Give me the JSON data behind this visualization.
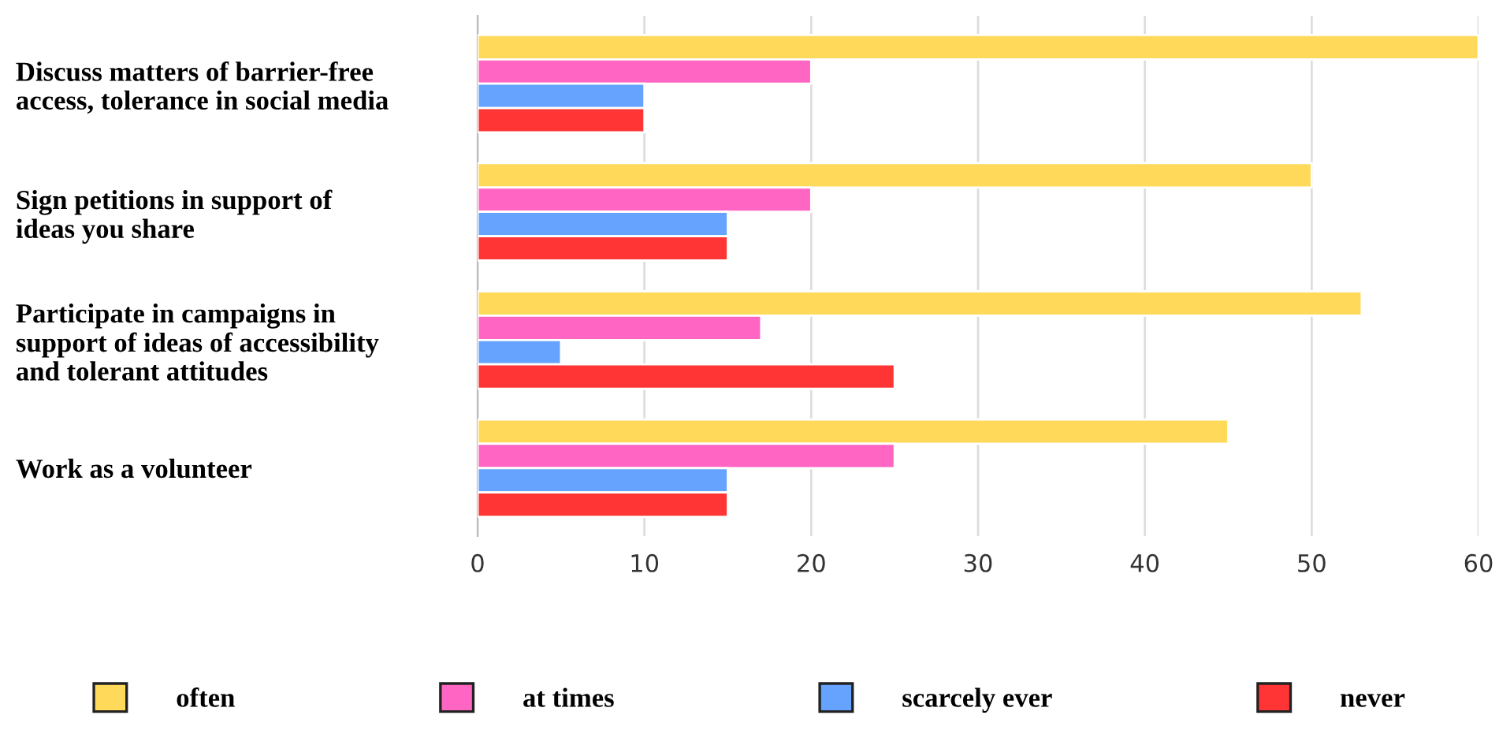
{
  "chart_data": {
    "type": "bar",
    "orientation": "horizontal",
    "categories": [
      "Discuss matters of barrier-free\naccess, tolerance in social media",
      "Sign petitions in support of\nideas you share",
      "Participate in campaigns in\nsupport of ideas of accessibility\nand tolerant attitudes",
      "Work as a volunteer"
    ],
    "series": [
      {
        "name": "often",
        "color": "#ffd95a",
        "values": [
          60,
          50,
          53,
          45
        ]
      },
      {
        "name": "at times",
        "color": "#ff66c4",
        "values": [
          20,
          20,
          17,
          25
        ]
      },
      {
        "name": "scarcely ever",
        "color": "#66a3ff",
        "values": [
          10,
          15,
          5,
          15
        ]
      },
      {
        "name": "never",
        "color": "#ff3535",
        "values": [
          10,
          15,
          25,
          15
        ]
      }
    ],
    "xlim": [
      0,
      60
    ],
    "xticks": [
      0,
      10,
      20,
      30,
      40,
      50,
      60
    ],
    "grid": "x",
    "legend": "bottom"
  }
}
